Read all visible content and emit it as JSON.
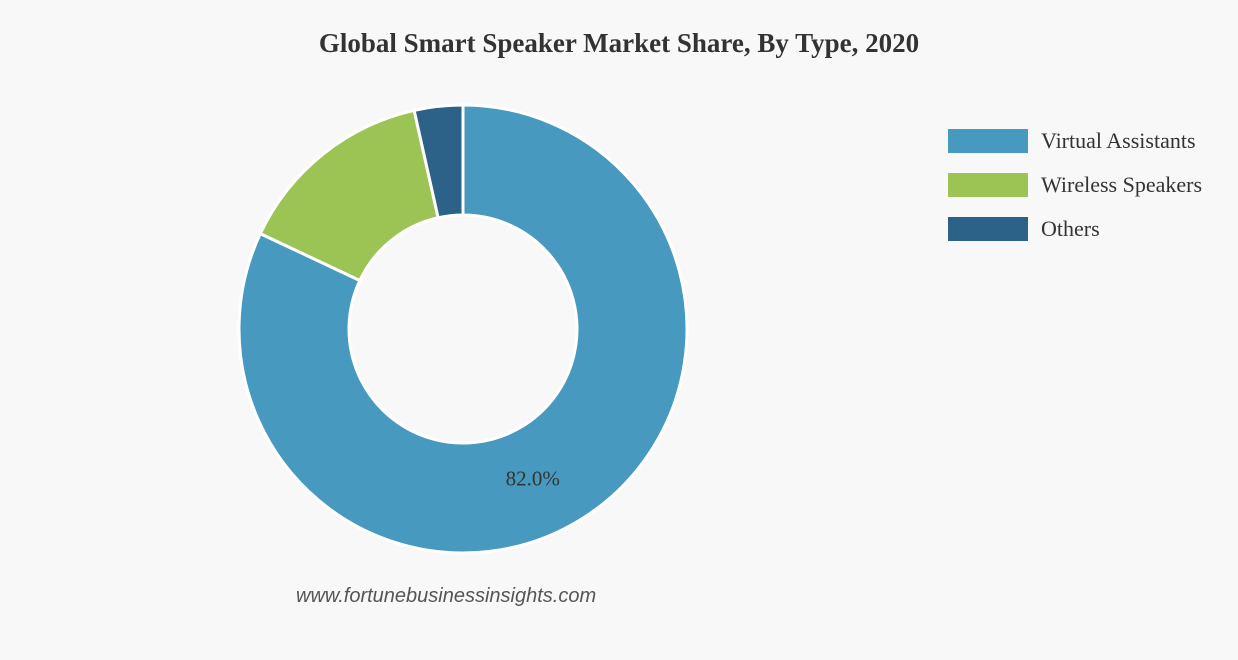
{
  "chart_data": {
    "type": "pie",
    "variant": "donut",
    "title": "Global Smart Speaker Market Share, By Type, 2020",
    "categories": [
      "Virtual Assistants",
      "Wireless Speakers",
      "Others"
    ],
    "values": [
      82.0,
      14.5,
      3.5
    ],
    "colors": [
      "#4899bf",
      "#9bc455",
      "#2c6287"
    ],
    "data_labels": [
      "82.0%",
      "",
      ""
    ],
    "legend_position": "top-right"
  },
  "watermark": "www.fortunebusinessinsights.com"
}
